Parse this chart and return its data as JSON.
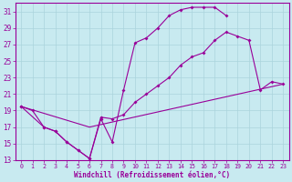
{
  "xlabel": "Windchill (Refroidissement éolien,°C)",
  "bg_color": "#c8eaf0",
  "grid_color": "#aad4dc",
  "line_color": "#990099",
  "xlim": [
    -0.5,
    23.5
  ],
  "ylim": [
    13,
    32
  ],
  "yticks": [
    13,
    15,
    17,
    19,
    21,
    23,
    25,
    27,
    29,
    31
  ],
  "xticks": [
    0,
    1,
    2,
    3,
    4,
    5,
    6,
    7,
    8,
    9,
    10,
    11,
    12,
    13,
    14,
    15,
    16,
    17,
    18,
    19,
    20,
    21,
    22,
    23
  ],
  "line1_x": [
    0,
    1,
    2,
    3,
    4,
    5,
    6,
    7,
    8,
    9,
    10,
    11,
    12,
    13,
    14,
    15,
    16,
    17,
    18
  ],
  "line1_y": [
    19.5,
    19.0,
    17.0,
    16.5,
    15.2,
    14.2,
    13.2,
    18.0,
    15.2,
    21.5,
    27.2,
    27.8,
    29.0,
    30.5,
    31.2,
    31.5,
    31.5,
    31.5,
    30.5
  ],
  "line2_x": [
    0,
    2,
    3,
    4,
    5,
    6,
    7,
    8,
    9,
    10,
    11,
    12,
    13,
    14,
    15,
    16,
    17,
    18,
    19,
    20,
    21,
    22,
    23
  ],
  "line2_y": [
    19.5,
    17.0,
    16.5,
    15.2,
    14.2,
    13.2,
    18.2,
    18.0,
    18.5,
    20.0,
    21.0,
    22.0,
    23.0,
    24.5,
    25.5,
    26.0,
    27.5,
    28.5,
    28.0,
    27.5,
    21.5,
    22.5,
    22.2
  ],
  "line3_x": [
    0,
    6,
    23
  ],
  "line3_y": [
    19.5,
    17.0,
    22.2
  ]
}
